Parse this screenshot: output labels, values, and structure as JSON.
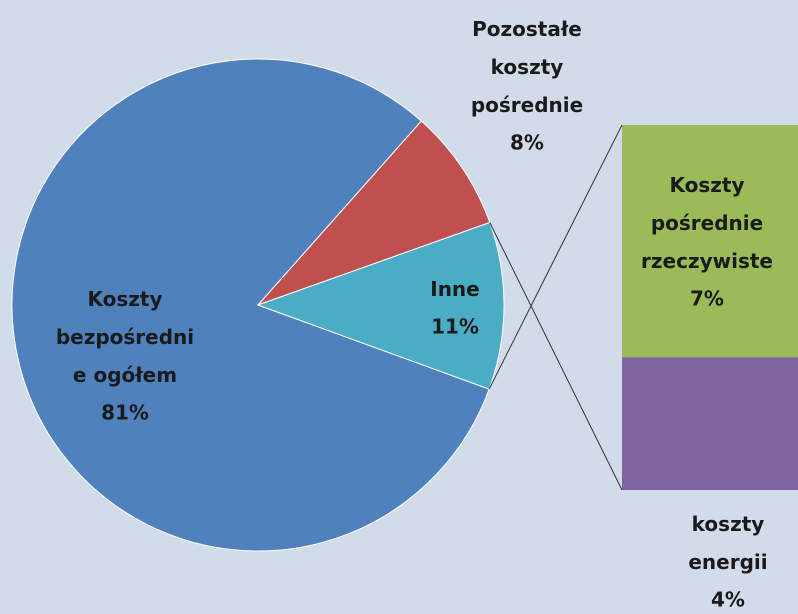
{
  "chart_data": {
    "type": "pie-of-bar",
    "categories": [
      "Koszty\nbezpośredni\ne ogółem",
      "Pozostałe\nkoszty\npośrednie",
      "Inne"
    ],
    "values": [
      81,
      8,
      11
    ],
    "value_labels": [
      "81%",
      "8%",
      "11%"
    ],
    "colors": [
      "#4f81bd",
      "#c0504d",
      "#4bacc6"
    ],
    "bar_categories": [
      "Koszty\npośrednie\nrzeczywiste",
      "koszty\nenergii"
    ],
    "bar_values": [
      7,
      4
    ],
    "bar_value_labels": [
      "7%",
      "4%"
    ],
    "bar_colors": [
      "#9bbb59",
      "#8064a2"
    ]
  }
}
